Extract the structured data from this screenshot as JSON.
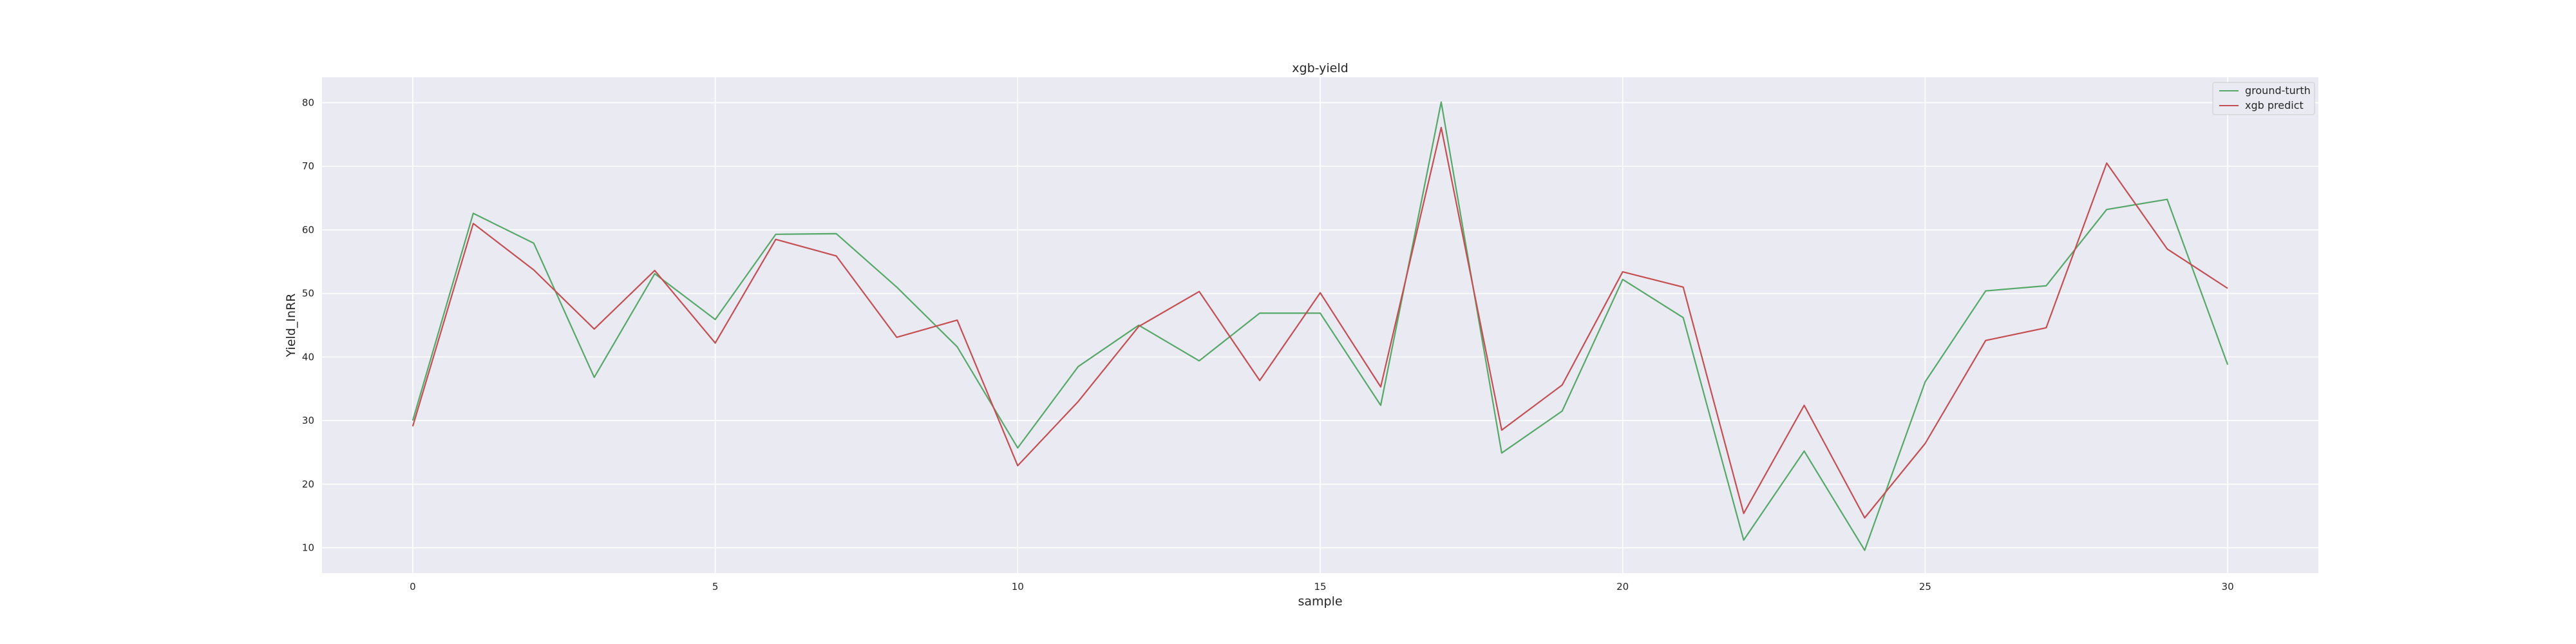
{
  "chart_data": {
    "type": "line",
    "title": "xgb-yield",
    "xlabel": "sample",
    "ylabel": "Yield_InRR",
    "xlim": [
      -1.5,
      31.5
    ],
    "ylim": [
      6,
      84
    ],
    "x_ticks": [
      0,
      5,
      10,
      15,
      20,
      25,
      30
    ],
    "y_ticks": [
      10,
      20,
      30,
      40,
      50,
      60,
      70,
      80
    ],
    "grid": true,
    "legend_position": "upper right",
    "x": [
      0,
      1,
      2,
      3,
      4,
      5,
      6,
      7,
      8,
      9,
      10,
      11,
      12,
      13,
      14,
      15,
      16,
      17,
      18,
      19,
      20,
      21,
      22,
      23,
      24,
      25,
      26,
      27,
      28,
      29,
      30
    ],
    "series": [
      {
        "name": "ground-turth",
        "color": "#55a868",
        "values": [
          30.0,
          62.6,
          57.9,
          36.8,
          53.1,
          45.9,
          59.3,
          59.4,
          51.0,
          41.6,
          25.7,
          38.5,
          45.0,
          39.4,
          46.9,
          46.9,
          32.4,
          80.1,
          24.9,
          31.5,
          52.2,
          46.2,
          11.2,
          25.2,
          9.6,
          36.1,
          50.4,
          51.2,
          63.2,
          64.8,
          38.8
        ]
      },
      {
        "name": "xgb predict",
        "color": "#c44e52",
        "values": [
          29.1,
          61.0,
          53.7,
          44.4,
          53.6,
          42.2,
          58.5,
          55.9,
          43.1,
          45.8,
          22.9,
          33.0,
          44.8,
          50.3,
          36.3,
          50.1,
          35.3,
          76.1,
          28.5,
          35.6,
          53.4,
          51.0,
          15.4,
          32.4,
          14.7,
          26.4,
          42.6,
          44.6,
          70.5,
          57.0,
          50.8
        ]
      }
    ]
  }
}
